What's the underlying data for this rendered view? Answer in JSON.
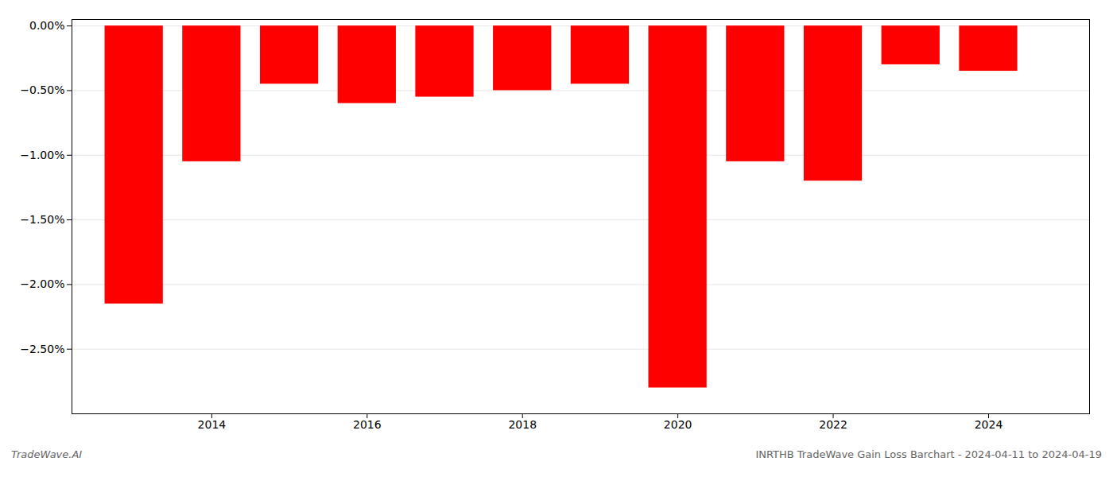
{
  "chart_data": {
    "type": "bar",
    "x": [
      2013,
      2014,
      2015,
      2016,
      2017,
      2018,
      2019,
      2020,
      2021,
      2022,
      2023,
      2024
    ],
    "values": [
      -0.0215,
      -0.0105,
      -0.0045,
      -0.006,
      -0.0055,
      -0.005,
      -0.0045,
      -0.028,
      -0.0105,
      -0.012,
      -0.003,
      -0.0035
    ],
    "color": "#ff0000",
    "xlim": [
      2012.2,
      2025.3
    ],
    "xticks": [
      2014,
      2016,
      2018,
      2020,
      2022,
      2024
    ],
    "ylim": [
      -0.03,
      0.0005
    ],
    "yticks": [
      {
        "value": 0.0,
        "label": "0.00%"
      },
      {
        "value": -0.005,
        "label": "−0.50%"
      },
      {
        "value": -0.01,
        "label": "−1.00%"
      },
      {
        "value": -0.015,
        "label": "−1.50%"
      },
      {
        "value": -0.02,
        "label": "−2.00%"
      },
      {
        "value": -0.025,
        "label": "−2.50%"
      }
    ],
    "grid": true,
    "annotations": [
      "TradeWave.AI",
      "INRTHB TradeWave Gain Loss Barchart - 2024-04-11 to 2024-04-19"
    ]
  }
}
